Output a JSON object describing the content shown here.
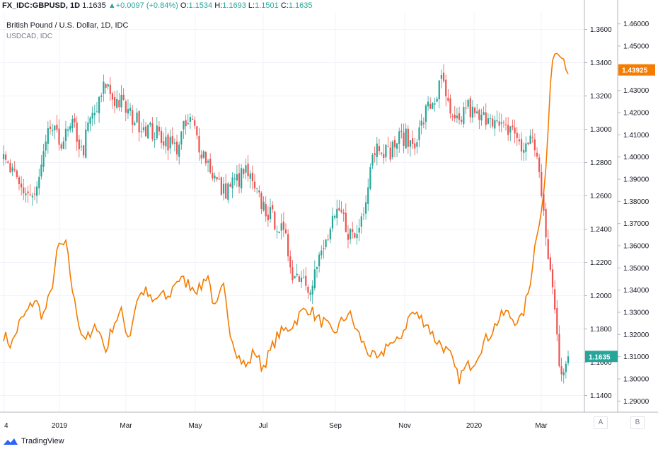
{
  "header": {
    "symbol": "FX_IDC:GBPUSD, 1D",
    "last": "1.1635",
    "change": "+0.0097 (+0.84%)",
    "o_label": "O:",
    "o": "1.1534",
    "h_label": "H:",
    "h": "1.1693",
    "l_label": "L:",
    "l": "1.1501",
    "c_label": "C:",
    "c": "1.1635"
  },
  "titles": {
    "main": "British Pound / U.S. Dollar, 1D, IDC",
    "overlay": "USDCAD, IDC"
  },
  "axis_buttons": {
    "a": "A",
    "b": "B"
  },
  "branding": {
    "name": "TradingView"
  },
  "colors": {
    "up": "#26a69a",
    "down": "#ef5350",
    "overlay_line": "#f57c00",
    "grid": "#f0f3fa",
    "axis_text": "#131722"
  },
  "chart_data": [
    {
      "type": "candlestick",
      "name": "GBPUSD",
      "title": "British Pound / U.S. Dollar, 1D, IDC",
      "y_axis": "inner-right",
      "ylim": [
        1.13,
        1.37
      ],
      "y_ticks": [
        "1.3600",
        "1.3400",
        "1.3200",
        "1.3000",
        "1.2800",
        "1.2600",
        "1.2400",
        "1.2200",
        "1.2000",
        "1.1800",
        "1.1600",
        "1.1400"
      ],
      "x_ticks": [
        "4",
        "2019",
        "Mar",
        "May",
        "Jul",
        "Sep",
        "Nov",
        "2020",
        "Mar"
      ],
      "last_value_label": "1.1635",
      "weekly_closes": [
        1.28,
        1.274,
        1.265,
        1.262,
        1.258,
        1.28,
        1.302,
        1.292,
        1.296,
        1.302,
        1.285,
        1.305,
        1.312,
        1.328,
        1.318,
        1.316,
        1.309,
        1.305,
        1.302,
        1.298,
        1.296,
        1.293,
        1.288,
        1.3,
        1.305,
        1.29,
        1.281,
        1.27,
        1.262,
        1.267,
        1.27,
        1.275,
        1.262,
        1.255,
        1.248,
        1.243,
        1.232,
        1.212,
        1.213,
        1.206,
        1.218,
        1.23,
        1.243,
        1.25,
        1.238,
        1.235,
        1.255,
        1.286,
        1.292,
        1.285,
        1.292,
        1.296,
        1.291,
        1.298,
        1.312,
        1.318,
        1.33,
        1.305,
        1.302,
        1.315,
        1.308,
        1.305,
        1.311,
        1.301,
        1.299,
        1.302,
        1.286,
        1.295,
        1.288,
        1.24,
        1.205,
        1.155,
        1.1635
      ]
    },
    {
      "type": "line",
      "name": "USDCAD",
      "title": "USDCAD, IDC",
      "y_axis": "outer-right",
      "ylim": [
        1.285,
        1.465
      ],
      "y_ticks": [
        "1.46000",
        "1.45000",
        "1.44000",
        "1.43000",
        "1.42000",
        "1.41000",
        "1.40000",
        "1.39000",
        "1.38000",
        "1.37000",
        "1.36000",
        "1.35000",
        "1.34000",
        "1.33000",
        "1.32000",
        "1.31000",
        "1.30000",
        "1.29000"
      ],
      "last_value_label": "1.43925",
      "weekly_values": [
        1.32,
        1.315,
        1.325,
        1.33,
        1.336,
        1.328,
        1.338,
        1.36,
        1.36,
        1.335,
        1.32,
        1.318,
        1.325,
        1.312,
        1.325,
        1.33,
        1.318,
        1.336,
        1.34,
        1.334,
        1.338,
        1.336,
        1.345,
        1.344,
        1.342,
        1.34,
        1.348,
        1.33,
        1.342,
        1.32,
        1.31,
        1.305,
        1.313,
        1.305,
        1.312,
        1.32,
        1.322,
        1.325,
        1.33,
        1.332,
        1.327,
        1.325,
        1.32,
        1.325,
        1.33,
        1.322,
        1.315,
        1.31,
        1.308,
        1.317,
        1.315,
        1.322,
        1.33,
        1.328,
        1.325,
        1.318,
        1.315,
        1.31,
        1.3,
        1.305,
        1.308,
        1.315,
        1.32,
        1.326,
        1.33,
        1.327,
        1.326,
        1.34,
        1.366,
        1.385,
        1.446,
        1.449,
        1.439
      ]
    }
  ]
}
